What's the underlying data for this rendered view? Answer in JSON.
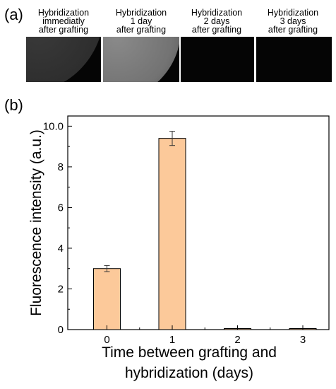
{
  "panel_a": {
    "label": "(a)",
    "images": [
      {
        "title": [
          "Hybridization",
          "immediatly",
          "after grafting"
        ],
        "brightness": "dim-circle"
      },
      {
        "title": [
          "Hybridization",
          "1 day",
          "after grafting"
        ],
        "brightness": "bright-circle"
      },
      {
        "title": [
          "Hybridization",
          "2 days",
          "after grafting"
        ],
        "brightness": "dark"
      },
      {
        "title": [
          "Hybridization",
          "3 days",
          "after grafting"
        ],
        "brightness": "dark"
      }
    ]
  },
  "panel_b": {
    "label": "(b)"
  },
  "chart_data": {
    "type": "bar",
    "categories": [
      "0",
      "1",
      "2",
      "3"
    ],
    "values": [
      3.0,
      9.4,
      0.02,
      0.02
    ],
    "errors": [
      0.15,
      0.35,
      0.0,
      0.0
    ],
    "ylabel": "Fluorescence intensity (a.u.)",
    "xlabel_lines": [
      "Time between grafting and",
      "hybridization (days)"
    ],
    "ylim": [
      0,
      10.5
    ],
    "yticks": [
      0,
      2,
      4,
      6,
      8,
      10
    ],
    "yticklabels": [
      "0",
      "2",
      "4",
      "6",
      "8",
      "10.0"
    ],
    "bar_color": "#fcc99a",
    "grid": false,
    "legend": "none"
  }
}
